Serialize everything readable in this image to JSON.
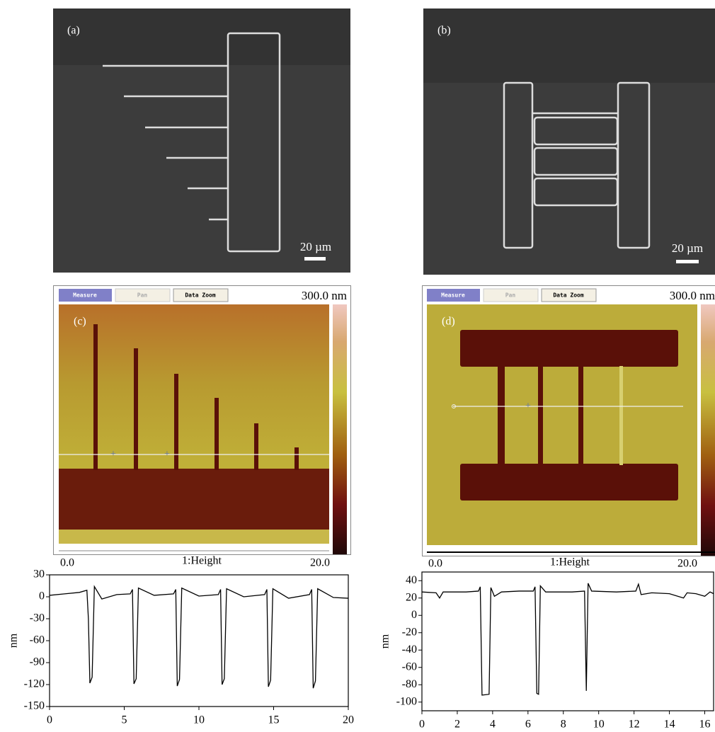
{
  "panels": {
    "a": {
      "label": "(a)",
      "scale_bar": "20 µm"
    },
    "b": {
      "label": "(b)",
      "scale_bar": "20 µm"
    },
    "c": {
      "label": "(c)",
      "buttons": [
        "Measure",
        "Pan",
        "Data Zoom"
      ],
      "range": "300.0 nm",
      "axis_start": "0.0",
      "axis_title": "1:Height",
      "axis_end": "20.0"
    },
    "d": {
      "label": "(d)",
      "buttons": [
        "Measure",
        "Pan",
        "Data Zoom"
      ],
      "range": "300.0 nm",
      "axis_start": "0.0",
      "axis_title": "1:Height",
      "axis_end": "20.0"
    }
  },
  "chart_data": [
    {
      "type": "line",
      "ylabel": "nm",
      "color": "#000000",
      "x": [
        0,
        1,
        2,
        2.5,
        2.6,
        2.7,
        2.85,
        3.0,
        3.5,
        4.5,
        5.4,
        5.55,
        5.65,
        5.8,
        5.95,
        7,
        8.3,
        8.45,
        8.55,
        8.7,
        8.85,
        10,
        11.3,
        11.45,
        11.55,
        11.7,
        11.85,
        13,
        14.4,
        14.55,
        14.65,
        14.8,
        14.95,
        16,
        17.4,
        17.55,
        17.65,
        17.8,
        17.95,
        19,
        20
      ],
      "values": [
        2,
        4,
        6,
        9,
        -30,
        -118,
        -110,
        14,
        -3,
        3,
        4,
        10,
        -119,
        -112,
        12,
        2,
        4,
        10,
        -122,
        -113,
        12,
        1,
        3,
        10,
        -120,
        -112,
        11,
        0,
        3,
        10,
        -123,
        -114,
        11,
        -2,
        3,
        10,
        -125,
        -115,
        11,
        -1,
        -2
      ],
      "xlim": [
        0,
        20
      ],
      "ylim": [
        -150,
        30
      ],
      "xticks": [
        0,
        5,
        10,
        15,
        20
      ],
      "yticks": [
        30,
        0,
        -30,
        -60,
        -90,
        -120,
        -150
      ]
    },
    {
      "type": "line",
      "ylabel": "nm",
      "color": "#000000",
      "x": [
        0,
        0.8,
        1,
        1.2,
        2.5,
        3.2,
        3.3,
        3.4,
        3.8,
        3.9,
        4.1,
        4.5,
        5.5,
        6.3,
        6.4,
        6.5,
        6.6,
        6.7,
        7,
        8.5,
        9.2,
        9.3,
        9.4,
        9.6,
        11,
        12.1,
        12.25,
        12.4,
        13,
        14,
        14.8,
        15,
        15.5,
        16,
        16.3,
        16.5
      ],
      "values": [
        27,
        26,
        20,
        27,
        27,
        28,
        33,
        -92,
        -91,
        32,
        22,
        27,
        28,
        28,
        33,
        -90,
        -91,
        34,
        27,
        27,
        28,
        -87,
        37,
        28,
        27,
        28,
        36,
        24,
        26,
        25,
        20,
        26,
        25,
        22,
        27,
        25
      ],
      "xlim": [
        0,
        16.5
      ],
      "ylim": [
        -110,
        50
      ],
      "xticks": [
        0,
        2,
        4,
        6,
        8,
        10,
        12,
        14,
        16
      ],
      "yticks": [
        40,
        20,
        0,
        -20,
        -40,
        -60,
        -80,
        -100
      ]
    }
  ]
}
